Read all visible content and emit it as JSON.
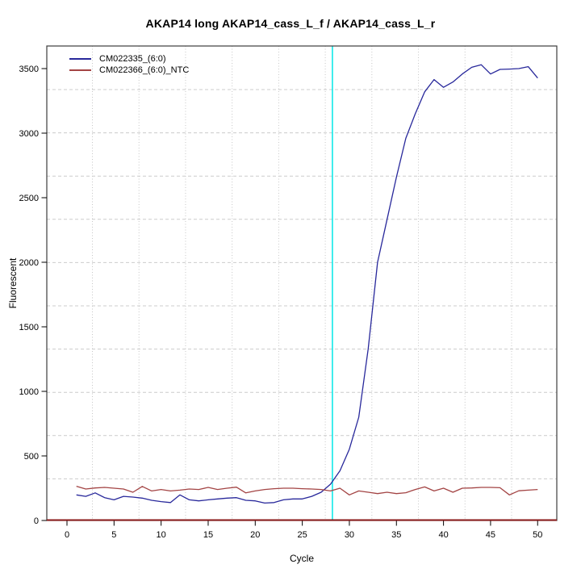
{
  "figure": {
    "title": "AKAP14 long AKAP14_cass_L_f / AKAP14_cass_L_r"
  },
  "chart_data": {
    "type": "line",
    "title": "AKAP14 long AKAP14_cass_L_f / AKAP14_cass_L_r",
    "xlabel": "Cycle",
    "ylabel": "Fluorescent",
    "xlim": [
      -2.14,
      52.04
    ],
    "ylim": [
      0,
      3675
    ],
    "x_ticks": [
      0,
      5,
      10,
      15,
      20,
      25,
      30,
      35,
      40,
      45,
      50
    ],
    "y_ticks": [
      0,
      500,
      1000,
      1500,
      2000,
      2500,
      3000,
      3500
    ],
    "grid": true,
    "legend_position": "top-left",
    "x": [
      1,
      2,
      3,
      4,
      5,
      6,
      7,
      8,
      9,
      10,
      11,
      12,
      13,
      14,
      15,
      16,
      17,
      18,
      19,
      20,
      21,
      22,
      23,
      24,
      25,
      26,
      27,
      28,
      29,
      30,
      31,
      32,
      33,
      34,
      35,
      36,
      37,
      38,
      39,
      40,
      41,
      42,
      43,
      44,
      45,
      46,
      47,
      48,
      49,
      50
    ],
    "series": [
      {
        "name": "CM022335_(6:0)",
        "color": "#28289B",
        "values": [
          198,
          187,
          214,
          177,
          160,
          187,
          181,
          173,
          156,
          146,
          139,
          198,
          160,
          152,
          160,
          167,
          173,
          177,
          156,
          152,
          135,
          139,
          160,
          167,
          167,
          187,
          219,
          281,
          385,
          552,
          800,
          1330,
          2000,
          2330,
          2660,
          2960,
          3150,
          3320,
          3415,
          3355,
          3396,
          3458,
          3510,
          3530,
          3458,
          3494,
          3496,
          3500,
          3515,
          3427
        ]
      },
      {
        "name": "CM022366_(6:0)_NTC",
        "color": "#A34444",
        "values": [
          265,
          244,
          252,
          256,
          250,
          244,
          219,
          264,
          229,
          240,
          229,
          235,
          244,
          240,
          256,
          240,
          250,
          258,
          214,
          229,
          240,
          246,
          250,
          250,
          246,
          244,
          240,
          229,
          250,
          198,
          229,
          219,
          208,
          219,
          208,
          215,
          240,
          260,
          229,
          250,
          219,
          250,
          252,
          256,
          256,
          254,
          198,
          230,
          235,
          240
        ]
      }
    ],
    "threshold_line": {
      "x": 28.2,
      "color": "#00E6E6"
    },
    "zero_line": {
      "y": 0,
      "color": "#8B1A1A"
    }
  }
}
